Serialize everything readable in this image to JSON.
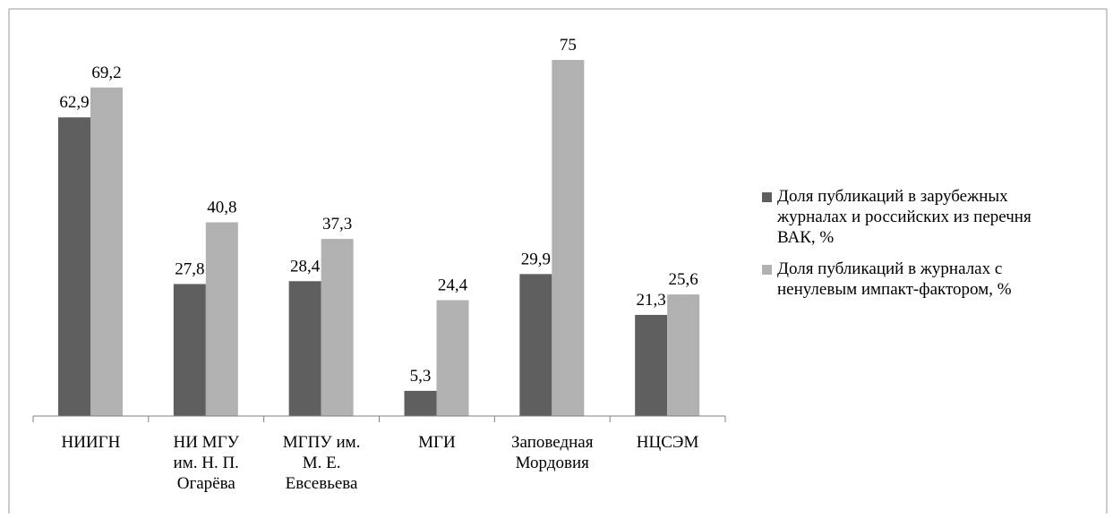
{
  "colors": {
    "series_1": "#5f5f5f",
    "series_2": "#b1b1b1",
    "axis": "#808080",
    "frame": "#9a9a9a"
  },
  "chart_data": {
    "type": "bar",
    "categories": [
      "НИИГН",
      "НИ МГУ им. Н. П. Огарёва",
      "МГПУ им. М. Е. Евсевьева",
      "МГИ",
      "Заповедная Мордовия",
      "НЦСЭМ"
    ],
    "category_lines": [
      [
        "НИИГН"
      ],
      [
        "НИ МГУ",
        "им. Н. П.",
        "Огарёва"
      ],
      [
        "МГПУ им.",
        "М. Е.",
        "Евсевьева"
      ],
      [
        "МГИ"
      ],
      [
        "Заповедная",
        "Мордовия"
      ],
      [
        "НЦСЭМ"
      ]
    ],
    "series": [
      {
        "name": "Доля публикаций в зарубежных журналах и российских из перечня ВАК, %",
        "values": [
          62.9,
          27.8,
          28.4,
          5.3,
          29.9,
          21.3
        ],
        "labels": [
          "62,9",
          "27,8",
          "28,4",
          "5,3",
          "29,9",
          "21,3"
        ]
      },
      {
        "name": "Доля публикаций в журналах с ненулевым импакт-фактором, %",
        "values": [
          69.2,
          40.8,
          37.3,
          24.4,
          75,
          25.6
        ],
        "labels": [
          "69,2",
          "40,8",
          "37,3",
          "24,4",
          "75",
          "25,6"
        ]
      }
    ],
    "legend_lines": [
      [
        "Доля публикаций в зарубежных",
        "журналах и российских из перечня",
        "ВАК, %"
      ],
      [
        "Доля публикаций в журналах с",
        "ненулевым импакт-фактором, %"
      ]
    ],
    "ylim": [
      0,
      75
    ],
    "grid": false,
    "legend_position": "right"
  }
}
